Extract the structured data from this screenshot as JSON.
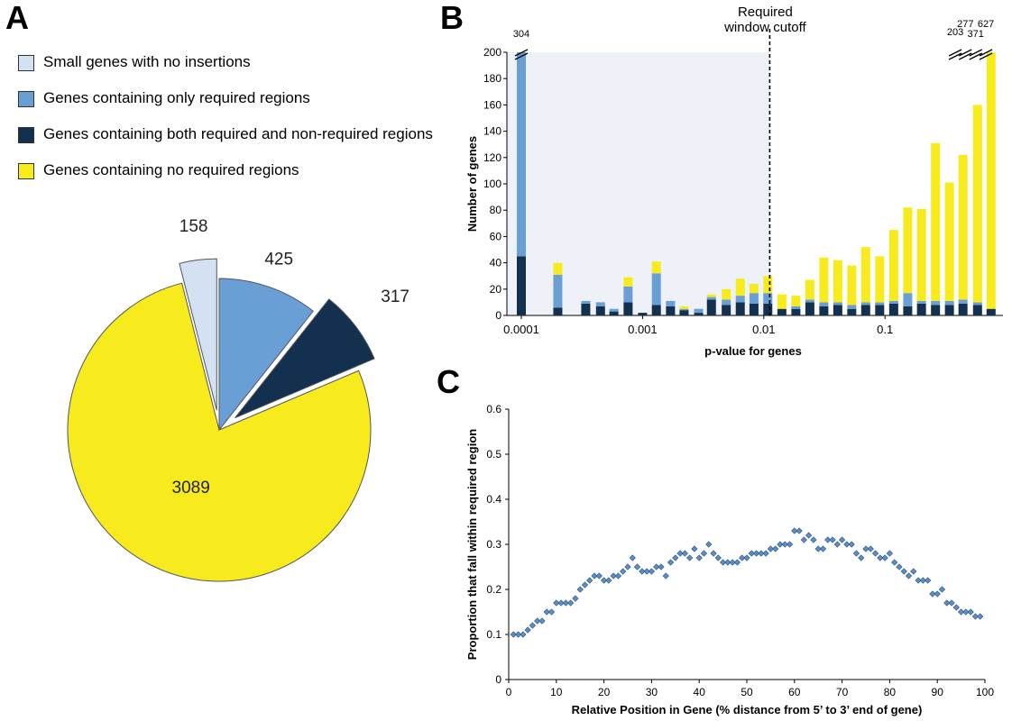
{
  "panels": {
    "a": "A",
    "b": "B",
    "c": "C"
  },
  "chart_data": [
    {
      "type": "pie",
      "panel": "A",
      "title": "",
      "slices": [
        {
          "label": "Small genes with no insertions",
          "value": 158,
          "color": "#d3e1f3",
          "exploded": true
        },
        {
          "label": "Genes containing only required regions",
          "value": 425,
          "color": "#6a9fd6",
          "exploded": false
        },
        {
          "label": "Genes containing both required and non-required regions",
          "value": 317,
          "color": "#13304f",
          "exploded": true
        },
        {
          "label": "Genes containing no required regions",
          "value": 3089,
          "color": "#f7eb1e",
          "exploded": false
        }
      ],
      "legend_placement": "top"
    },
    {
      "type": "bar",
      "panel": "B",
      "stacked": true,
      "xlabel": "p-value for genes",
      "ylabel": "Number of genes",
      "x_scale": "log",
      "xlim": [
        0.0001,
        0.82
      ],
      "ylim": [
        0,
        200
      ],
      "yticks": [
        0,
        20,
        40,
        60,
        80,
        100,
        120,
        140,
        160,
        180,
        200
      ],
      "xticks": [
        "0.0001",
        "0.001",
        "0.01",
        "0.1"
      ],
      "cutoff": {
        "x": 0.0112,
        "label_line1": "Required",
        "label_line2": "window cutoff"
      },
      "break_labels": [
        {
          "x": 0.0001,
          "label": "304"
        },
        {
          "x": 0.38,
          "label": "203"
        },
        {
          "x": 0.46,
          "label": "277"
        },
        {
          "x": 0.56,
          "label": "371"
        },
        {
          "x": 0.68,
          "label": "627"
        }
      ],
      "x": [
        0.0001,
        0.00013,
        0.00017,
        0.0002,
        0.00026,
        0.00034,
        0.00045,
        0.00058,
        0.00076,
        0.001,
        0.0013,
        0.0017,
        0.0022,
        0.0029,
        0.0037,
        0.0049,
        0.0064,
        0.0083,
        0.0108,
        0.0141,
        0.0184,
        0.024,
        0.0313,
        0.0408,
        0.0532,
        0.0693,
        0.0904,
        0.118,
        0.154,
        0.2,
        0.261,
        0.34,
        0.44,
        0.58,
        0.75
      ],
      "series": [
        {
          "name": "Genes containing both required and non-required regions",
          "color": "#13304f",
          "values": [
            45,
            0,
            0,
            6,
            0,
            9,
            7,
            3,
            10,
            2,
            8,
            7,
            4,
            2,
            12,
            8,
            10,
            9,
            9,
            5,
            5,
            10,
            7,
            8,
            5,
            8,
            8,
            9,
            7,
            9,
            8,
            8,
            9,
            8,
            5
          ]
        },
        {
          "name": "Genes containing only required regions",
          "color": "#6a9fd6",
          "values": [
            155,
            0,
            0,
            25,
            0,
            2,
            3,
            2,
            12,
            0,
            24,
            4,
            1,
            3,
            2,
            4,
            5,
            8,
            8,
            0,
            2,
            2,
            3,
            2,
            3,
            2,
            2,
            2,
            10,
            2,
            3,
            3,
            3,
            2,
            0
          ]
        },
        {
          "name": "Genes containing no required regions",
          "color": "#f7eb1e",
          "values": [
            0,
            0,
            0,
            9,
            0,
            0,
            0,
            0,
            7,
            0,
            9,
            0,
            2,
            0,
            2,
            8,
            13,
            7,
            13,
            11,
            8,
            15,
            34,
            32,
            30,
            42,
            35,
            54,
            65,
            70,
            120,
            90,
            110,
            150,
            195
          ]
        }
      ]
    },
    {
      "type": "scatter",
      "panel": "C",
      "xlabel": "Relative Position in Gene (% distance from 5’ to 3’ end of gene)",
      "ylabel": "Proportion that fall within required region",
      "xlim": [
        0,
        100
      ],
      "ylim": [
        0,
        0.6
      ],
      "xticks": [
        0,
        10,
        20,
        30,
        40,
        50,
        60,
        70,
        80,
        90,
        100
      ],
      "yticks": [
        0,
        0.1,
        0.2,
        0.3,
        0.4,
        0.5,
        0.6
      ],
      "marker_color": "#5b8dc8",
      "x": [
        1,
        2,
        3,
        4,
        5,
        6,
        7,
        8,
        9,
        10,
        11,
        12,
        13,
        14,
        15,
        16,
        17,
        18,
        19,
        20,
        21,
        22,
        23,
        24,
        25,
        26,
        27,
        28,
        29,
        30,
        31,
        32,
        33,
        34,
        35,
        36,
        37,
        38,
        39,
        40,
        41,
        42,
        43,
        44,
        45,
        46,
        47,
        48,
        49,
        50,
        51,
        52,
        53,
        54,
        55,
        56,
        57,
        58,
        59,
        60,
        61,
        62,
        63,
        64,
        65,
        66,
        67,
        68,
        69,
        70,
        71,
        72,
        73,
        74,
        75,
        76,
        77,
        78,
        79,
        80,
        81,
        82,
        83,
        84,
        85,
        86,
        87,
        88,
        89,
        90,
        91,
        92,
        93,
        94,
        95,
        96,
        97,
        98,
        99
      ],
      "y": [
        0.1,
        0.1,
        0.1,
        0.11,
        0.12,
        0.13,
        0.13,
        0.15,
        0.15,
        0.17,
        0.17,
        0.17,
        0.17,
        0.18,
        0.2,
        0.21,
        0.22,
        0.23,
        0.23,
        0.22,
        0.22,
        0.23,
        0.23,
        0.24,
        0.25,
        0.27,
        0.25,
        0.24,
        0.24,
        0.24,
        0.25,
        0.25,
        0.23,
        0.26,
        0.27,
        0.28,
        0.28,
        0.27,
        0.29,
        0.27,
        0.28,
        0.3,
        0.28,
        0.27,
        0.26,
        0.26,
        0.26,
        0.26,
        0.27,
        0.27,
        0.28,
        0.28,
        0.28,
        0.28,
        0.29,
        0.29,
        0.3,
        0.3,
        0.3,
        0.33,
        0.33,
        0.31,
        0.32,
        0.31,
        0.29,
        0.29,
        0.31,
        0.31,
        0.3,
        0.31,
        0.3,
        0.3,
        0.28,
        0.27,
        0.29,
        0.29,
        0.28,
        0.27,
        0.27,
        0.28,
        0.26,
        0.25,
        0.24,
        0.23,
        0.24,
        0.22,
        0.22,
        0.22,
        0.19,
        0.19,
        0.2,
        0.17,
        0.17,
        0.16,
        0.15,
        0.15,
        0.15,
        0.14,
        0.14
      ]
    }
  ]
}
